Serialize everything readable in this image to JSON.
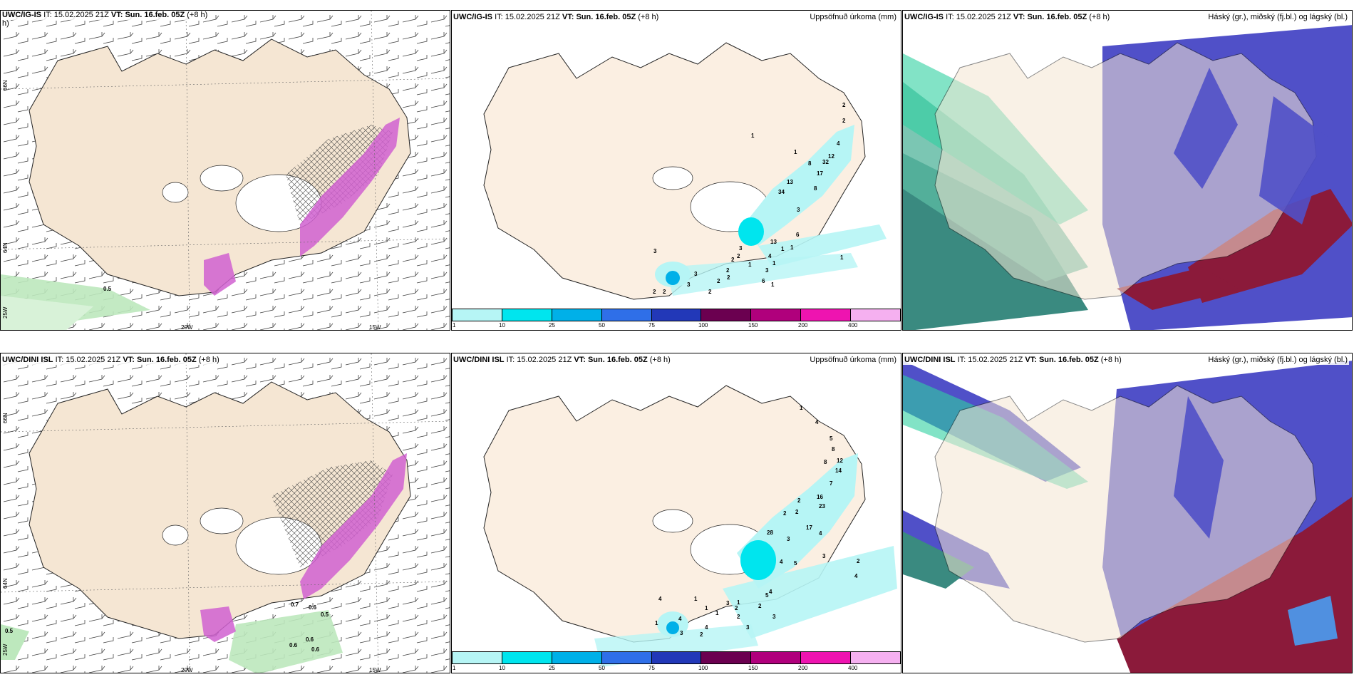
{
  "header_titles": {
    "igis": "UWC/IG-IS",
    "dini": "UWC/DINI ISL"
  },
  "time": {
    "it_label": "IT:",
    "it_value": "15.02.2025 21Z",
    "vt_label": "VT:",
    "vt_value": "Sun. 16.feb. 05Z",
    "lead": "(+8 h)"
  },
  "precip_title": "Uppsöfnuð úrkoma (mm)",
  "cloud_title": "Háský (gr.), miðský (fj.bl.) og lágský (bl.)",
  "top_left_wrap": "h)",
  "colorbar": {
    "labels": [
      "1",
      "10",
      "25",
      "50",
      "75",
      "100",
      "150",
      "200",
      "400"
    ],
    "colors": [
      "#b6f5f5",
      "#00e5ee",
      "#00b0e8",
      "#2f6fe8",
      "#2238b8",
      "#6b0050",
      "#b0007c",
      "#ee14b0",
      "#f5b0f0"
    ]
  },
  "axis": {
    "lon1": "20W",
    "lon2": "15W",
    "lat1": "66N",
    "lat2": "64N",
    "corner": "25W"
  },
  "wind_panel_values": {
    "top": [
      "0.5"
    ],
    "bottom": [
      "0.5",
      "0.7",
      "0.6",
      "0.5",
      "0.6",
      "0.6",
      "0.6"
    ]
  },
  "precip_numbers_top": [
    "2",
    "2",
    "4",
    "12",
    "32",
    "17",
    "1",
    "1",
    "8",
    "13",
    "34",
    "8",
    "6",
    "3",
    "13",
    "1",
    "1",
    "3",
    "1",
    "1",
    "4",
    "6",
    "1",
    "1",
    "2",
    "2",
    "3",
    "2",
    "2",
    "3",
    "2",
    "2",
    "2",
    "3",
    "2",
    "3"
  ],
  "precip_numbers_bottom": [
    "1",
    "4",
    "5",
    "8",
    "12",
    "8",
    "14",
    "7",
    "16",
    "2",
    "23",
    "2",
    "17",
    "4",
    "2",
    "4",
    "3",
    "4",
    "28",
    "2",
    "3",
    "5",
    "5",
    "4",
    "2",
    "3",
    "1",
    "3",
    "4",
    "4",
    "2",
    "1",
    "1",
    "2",
    "3",
    "3",
    "2",
    "1",
    "4",
    "1"
  ]
}
